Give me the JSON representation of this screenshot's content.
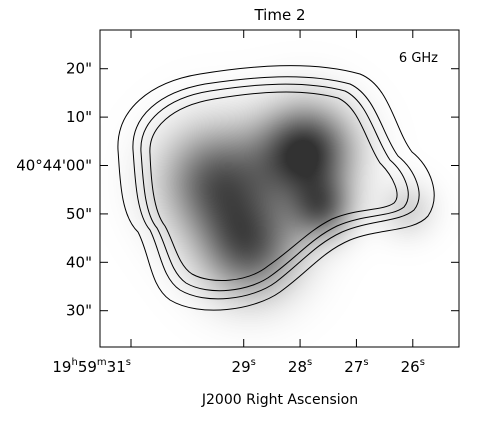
{
  "chart_data": {
    "type": "heatmap",
    "title": "Time 2",
    "annotation": "6 GHz",
    "xlabel": "J2000 Right Ascension",
    "ylabel": "",
    "x_ticks": [
      {
        "label": "19h59m31s",
        "parts": [
          {
            "t": "19"
          },
          {
            "t": "h",
            "sup": true
          },
          {
            "t": "59"
          },
          {
            "t": "m",
            "sup": true
          },
          {
            "t": "31"
          },
          {
            "t": "s",
            "sup": true
          }
        ],
        "ra_sec": 31
      },
      {
        "label": "29s",
        "parts": [
          {
            "t": "29"
          },
          {
            "t": "s",
            "sup": true
          }
        ],
        "ra_sec": 29
      },
      {
        "label": "28s",
        "parts": [
          {
            "t": "28"
          },
          {
            "t": "s",
            "sup": true
          }
        ],
        "ra_sec": 28
      },
      {
        "label": "27s",
        "parts": [
          {
            "t": "27"
          },
          {
            "t": "s",
            "sup": true
          }
        ],
        "ra_sec": 27
      },
      {
        "label": "26s",
        "parts": [
          {
            "t": "26"
          },
          {
            "t": "s",
            "sup": true
          }
        ],
        "ra_sec": 26
      }
    ],
    "y_ticks": [
      {
        "label": "20\"",
        "dec_arcsec": 20
      },
      {
        "label": "10\"",
        "dec_arcsec": 10
      },
      {
        "label": "40°44'00\"",
        "dec_arcsec": 0
      },
      {
        "label": "50\"",
        "dec_arcsec": -10
      },
      {
        "label": "40\"",
        "dec_arcsec": -20
      },
      {
        "label": "30\"",
        "dec_arcsec": -30
      }
    ],
    "x_range_ra_sec": [
      31.55,
      25.18
    ],
    "y_range_dec_arcsec": [
      -37.5,
      28
    ],
    "x_direction": "RA increases to the left",
    "colormap": "grayscale (white = low, black = high)",
    "emission_peaks": [
      {
        "ra_sec": 27.9,
        "dec_arcsec": 3,
        "intensity": 1.0
      },
      {
        "ra_sec": 29.5,
        "dec_arcsec": -3,
        "intensity": 0.78
      },
      {
        "ra_sec": 28.9,
        "dec_arcsec": -17,
        "intensity": 0.76
      },
      {
        "ra_sec": 27.6,
        "dec_arcsec": -9,
        "intensity": 0.6
      },
      {
        "ra_sec": 26.1,
        "dec_arcsec": -9,
        "intensity": 0.25
      }
    ],
    "contour_count": 4
  }
}
